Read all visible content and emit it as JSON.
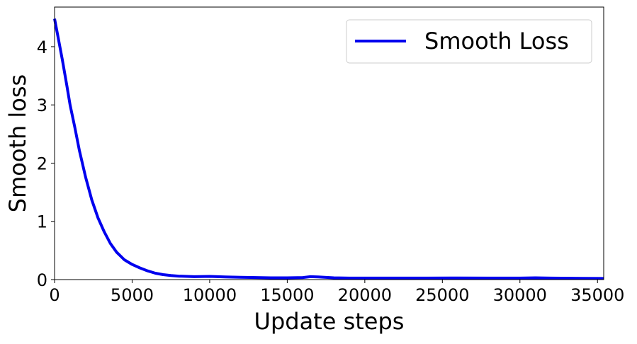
{
  "chart_data": {
    "type": "line",
    "title": "",
    "xlabel": "Update steps",
    "ylabel": "Smooth loss",
    "xlim": [
      0,
      35400
    ],
    "ylim": [
      0,
      4.68
    ],
    "xticks": [
      0,
      5000,
      10000,
      15000,
      20000,
      25000,
      30000,
      35000
    ],
    "xtick_labels": [
      "0",
      "5000",
      "10000",
      "15000",
      "20000",
      "25000",
      "30000",
      "35000"
    ],
    "yticks": [
      0,
      1,
      2,
      3,
      4
    ],
    "ytick_labels": [
      "0",
      "1",
      "2",
      "3",
      "4"
    ],
    "grid": false,
    "legend_position": "top-right",
    "series": [
      {
        "name": "Smooth Loss",
        "color": "#0000ee",
        "x": [
          0,
          200,
          500,
          800,
          1000,
          1300,
          1600,
          2000,
          2400,
          2800,
          3200,
          3600,
          4000,
          4500,
          5000,
          5500,
          6000,
          6500,
          7000,
          7500,
          8000,
          9000,
          10000,
          11000,
          12000,
          13000,
          14000,
          15000,
          16000,
          16500,
          17000,
          18000,
          19000,
          20000,
          22000,
          24000,
          26000,
          28000,
          30000,
          31000,
          32000,
          34000,
          35400
        ],
        "y": [
          4.48,
          4.2,
          3.78,
          3.32,
          3.0,
          2.62,
          2.22,
          1.76,
          1.37,
          1.06,
          0.82,
          0.62,
          0.47,
          0.34,
          0.26,
          0.2,
          0.15,
          0.11,
          0.085,
          0.07,
          0.06,
          0.05,
          0.055,
          0.045,
          0.04,
          0.035,
          0.03,
          0.03,
          0.035,
          0.05,
          0.045,
          0.03,
          0.025,
          0.025,
          0.025,
          0.025,
          0.028,
          0.025,
          0.025,
          0.03,
          0.025,
          0.022,
          0.02
        ]
      }
    ]
  }
}
